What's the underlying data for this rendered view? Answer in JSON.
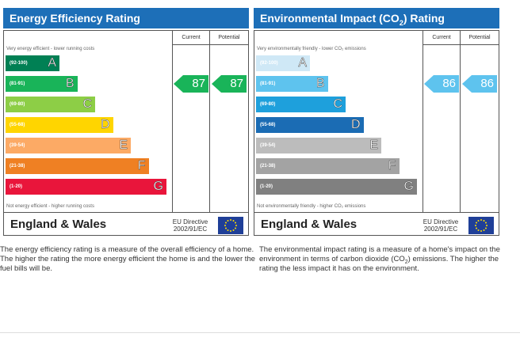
{
  "chart_data": [
    {
      "type": "bar",
      "title": "Energy Efficiency Rating",
      "columns": [
        "Current",
        "Potential"
      ],
      "top_note": "Very energy efficient - lower running costs",
      "bottom_note": "Not energy efficient - higher running costs",
      "bands": [
        {
          "range": "(92-100)",
          "letter": "A",
          "color": "#008054"
        },
        {
          "range": "(81-91)",
          "letter": "B",
          "color": "#19b459"
        },
        {
          "range": "(69-80)",
          "letter": "C",
          "color": "#8dce46"
        },
        {
          "range": "(55-68)",
          "letter": "D",
          "color": "#ffd500"
        },
        {
          "range": "(39-54)",
          "letter": "E",
          "color": "#fcaa65"
        },
        {
          "range": "(21-38)",
          "letter": "F",
          "color": "#ef8023"
        },
        {
          "range": "(1-20)",
          "letter": "G",
          "color": "#e9153b"
        }
      ],
      "current": {
        "value": 87,
        "band": "B",
        "color": "#19b459"
      },
      "potential": {
        "value": 87,
        "band": "B",
        "color": "#19b459"
      },
      "region": "England & Wales",
      "directive": "EU Directive 2002/91/EC"
    },
    {
      "type": "bar",
      "title": "Environmental Impact (CO",
      "title_sub": "2",
      "title_end": ") Rating",
      "columns": [
        "Current",
        "Potential"
      ],
      "top_note": "Very environmentally friendly - lower CO₂ emissions",
      "bottom_note": "Not environmentally friendly - higher CO₂ emissions",
      "bands": [
        {
          "range": "(92-100)",
          "letter": "A",
          "color": "#cfe8f6"
        },
        {
          "range": "(81-91)",
          "letter": "B",
          "color": "#5ec3ee"
        },
        {
          "range": "(69-80)",
          "letter": "C",
          "color": "#1ea0dc"
        },
        {
          "range": "(55-68)",
          "letter": "D",
          "color": "#1b6cb4"
        },
        {
          "range": "(39-54)",
          "letter": "E",
          "color": "#bcbcbc"
        },
        {
          "range": "(21-38)",
          "letter": "F",
          "color": "#a3a3a3"
        },
        {
          "range": "(1-20)",
          "letter": "G",
          "color": "#808080"
        }
      ],
      "current": {
        "value": 86,
        "band": "B",
        "color": "#5ec3ee"
      },
      "potential": {
        "value": 86,
        "band": "B",
        "color": "#5ec3ee"
      },
      "region": "England & Wales",
      "directive": "EU Directive 2002/91/EC"
    }
  ],
  "descriptions": {
    "energy": "The energy efficiency rating is a measure of the overall efficiency of a home. The higher the rating the more energy efficient the home is and the lower the fuel bills will be.",
    "environment_start": "The environmental impact rating is a measure of a home's impact on the environment in terms of carbon dioxide (CO",
    "environment_sub": "2",
    "environment_end": ") emissions. The higher the rating the less impact it has on the environment."
  }
}
